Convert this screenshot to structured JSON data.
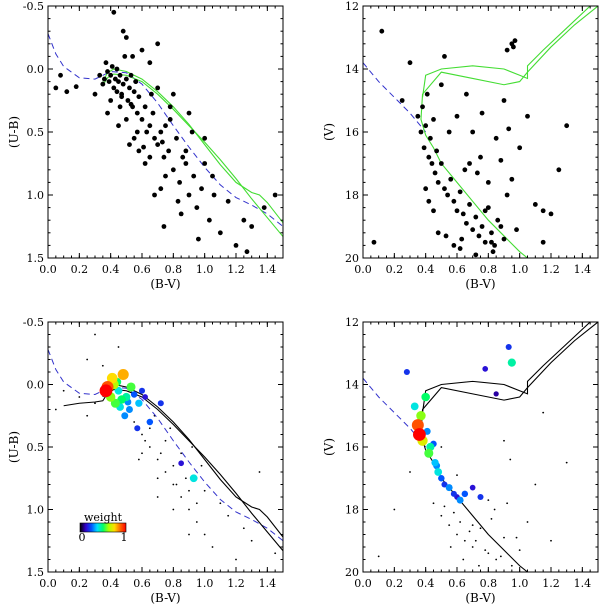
{
  "chart_data": [
    {
      "type": "scatter",
      "panel": "top-left",
      "xlabel": "(B-V)",
      "ylabel": "(U-B)",
      "xlim": [
        0.0,
        1.5
      ],
      "ylim": [
        1.5,
        -0.5
      ],
      "xticks": [
        "0.0",
        "0.2",
        "0.4",
        "0.6",
        "0.8",
        "1.0",
        "1.2",
        "1.4"
      ],
      "yticks": [
        "-0.5",
        "0.0",
        "0.5",
        "1.0",
        "1.5"
      ],
      "point_color": "#000000",
      "isochrone_colors": [
        "#44dd33",
        "#44dd33"
      ],
      "reference_line": {
        "style": "dashed",
        "color": "#3333cc",
        "x": [
          0.0,
          0.05,
          0.1,
          0.2,
          0.3,
          0.4,
          0.5,
          0.6,
          0.7,
          0.8,
          0.9,
          1.0,
          1.1,
          1.2,
          1.3,
          1.4,
          1.5
        ],
        "y": [
          -0.28,
          -0.12,
          -0.02,
          0.07,
          0.08,
          0.02,
          0.03,
          0.12,
          0.27,
          0.45,
          0.62,
          0.78,
          0.92,
          1.02,
          1.08,
          1.15,
          1.25
        ]
      },
      "isochrones": [
        {
          "x": [
            0.35,
            0.38,
            0.42,
            0.5,
            0.6,
            0.7,
            0.8,
            0.9,
            1.0,
            1.1,
            1.2,
            1.3,
            1.4,
            1.5
          ],
          "y": [
            0.13,
            0.07,
            0.04,
            0.05,
            0.1,
            0.2,
            0.32,
            0.45,
            0.58,
            0.72,
            0.87,
            1.03,
            1.18,
            1.33
          ]
        },
        {
          "x": [
            0.35,
            0.38,
            0.42,
            0.5,
            0.6,
            0.7,
            0.8,
            0.9,
            1.0,
            1.1,
            1.2,
            1.3,
            1.35,
            1.4,
            1.5
          ],
          "y": [
            0.1,
            0.03,
            0.0,
            0.02,
            0.08,
            0.18,
            0.3,
            0.44,
            0.6,
            0.76,
            0.9,
            0.98,
            1.0,
            1.06,
            1.22
          ]
        }
      ],
      "scatter_x": [
        0.05,
        0.08,
        0.12,
        0.18,
        0.3,
        0.33,
        0.35,
        0.36,
        0.37,
        0.38,
        0.39,
        0.4,
        0.41,
        0.42,
        0.43,
        0.44,
        0.45,
        0.46,
        0.47,
        0.48,
        0.49,
        0.5,
        0.51,
        0.52,
        0.53,
        0.54,
        0.55,
        0.56,
        0.57,
        0.58,
        0.6,
        0.62,
        0.63,
        0.65,
        0.67,
        0.68,
        0.7,
        0.72,
        0.74,
        0.75,
        0.77,
        0.8,
        0.82,
        0.84,
        0.86,
        0.88,
        0.9,
        0.93,
        0.95,
        0.98,
        1.0,
        1.03,
        1.06,
        1.1,
        1.15,
        1.2,
        1.25,
        1.3,
        0.6,
        0.7,
        0.8,
        0.9,
        0.5,
        0.55,
        0.65,
        0.75,
        0.85,
        0.45,
        0.48,
        0.52,
        0.58,
        0.66,
        0.72,
        0.78,
        0.83,
        0.92,
        1.05,
        0.62,
        0.68,
        0.74,
        0.88,
        0.96,
        0.42,
        0.4,
        0.38,
        0.46,
        0.5,
        0.54,
        0.56,
        1.27,
        1.38,
        1.45,
        0.65,
        0.7,
        0.78,
        1.0,
        0.57,
        0.61,
        0.73,
        0.44,
        0.47,
        0.53
      ],
      "scatter_y": [
        0.15,
        0.05,
        0.18,
        0.14,
        0.2,
        0.05,
        0.12,
        0.08,
        -0.05,
        0.02,
        0.1,
        0.05,
        -0.02,
        0.15,
        0.08,
        0.0,
        0.1,
        0.05,
        0.2,
        0.12,
        -0.1,
        0.08,
        0.25,
        0.15,
        0.05,
        0.3,
        0.18,
        0.1,
        0.35,
        0.22,
        0.4,
        0.3,
        0.5,
        0.45,
        0.35,
        0.55,
        0.6,
        0.5,
        0.7,
        0.45,
        0.65,
        0.8,
        0.55,
        0.9,
        0.7,
        0.75,
        1.0,
        0.85,
        1.1,
        0.95,
        0.75,
        1.2,
        1.0,
        1.3,
        1.05,
        1.4,
        1.2,
        1.25,
        -0.15,
        -0.2,
        0.2,
        0.35,
        -0.25,
        0.55,
        0.7,
        0.85,
        1.15,
        0.45,
        -0.3,
        0.6,
        0.65,
        0.2,
        0.95,
        0.4,
        1.05,
        0.5,
        0.85,
        0.75,
        1.0,
        1.25,
        0.65,
        1.35,
        -0.45,
        0.25,
        0.35,
        0.3,
        0.4,
        -0.1,
        0.1,
        1.45,
        1.1,
        1.0,
        -0.05,
        0.15,
        0.3,
        0.55,
        0.5,
        0.62,
        0.58,
        0.18,
        0.22,
        0.28
      ]
    },
    {
      "type": "scatter",
      "panel": "top-right",
      "xlabel": "(B-V)",
      "ylabel": "(V)",
      "xlim": [
        0.0,
        1.5
      ],
      "ylim": [
        20,
        12
      ],
      "xticks": [
        "0.0",
        "0.2",
        "0.4",
        "0.6",
        "0.8",
        "1.0",
        "1.2",
        "1.4"
      ],
      "yticks": [
        "12",
        "14",
        "16",
        "18",
        "20"
      ],
      "point_color": "#000000",
      "isochrone_colors": [
        "#44dd33",
        "#44dd33"
      ],
      "reference_line": {
        "style": "dashed",
        "color": "#3333cc",
        "x": [
          0.0,
          0.1,
          0.2,
          0.3,
          0.4
        ],
        "y": [
          13.8,
          14.4,
          14.9,
          15.4,
          16.0
        ]
      },
      "isochrones": [
        {
          "x": [
            1.5,
            1.35,
            1.2,
            1.05,
            1.0,
            0.9,
            0.7,
            0.5,
            0.38,
            0.37,
            0.4,
            0.45,
            0.5,
            0.6,
            0.7,
            0.8,
            0.9,
            1.0,
            1.05
          ],
          "y": [
            12.0,
            12.6,
            13.3,
            14.1,
            14.4,
            14.5,
            14.3,
            14.1,
            14.8,
            15.6,
            16.1,
            16.5,
            17.0,
            17.6,
            18.2,
            18.8,
            19.3,
            19.8,
            20.0
          ]
        },
        {
          "x": [
            1.45,
            1.3,
            1.15,
            1.05,
            1.05,
            1.0,
            0.9,
            0.7,
            0.5,
            0.4,
            0.38
          ],
          "y": [
            12.0,
            12.7,
            13.4,
            13.9,
            14.3,
            14.2,
            14.0,
            13.9,
            14.0,
            14.2,
            14.9
          ]
        }
      ],
      "scatter_x": [
        0.07,
        0.12,
        0.25,
        0.3,
        0.35,
        0.37,
        0.38,
        0.39,
        0.4,
        0.41,
        0.42,
        0.43,
        0.44,
        0.45,
        0.46,
        0.47,
        0.48,
        0.5,
        0.52,
        0.54,
        0.56,
        0.58,
        0.6,
        0.62,
        0.64,
        0.66,
        0.68,
        0.7,
        0.72,
        0.74,
        0.76,
        0.78,
        0.8,
        0.82,
        0.84,
        0.86,
        0.88,
        0.9,
        0.92,
        0.95,
        0.98,
        1.0,
        1.05,
        1.1,
        1.15,
        1.2,
        1.25,
        1.3,
        0.55,
        0.65,
        0.75,
        0.85,
        0.5,
        0.6,
        0.7,
        0.8,
        0.9,
        0.45,
        0.4,
        0.42,
        0.48,
        0.53,
        0.58,
        0.63,
        0.68,
        0.73,
        0.78,
        0.83,
        0.88,
        0.93,
        0.95,
        0.96,
        0.97,
        0.92,
        1.15,
        0.62,
        0.72,
        0.82,
        0.52,
        0.66,
        0.76
      ],
      "scatter_y": [
        19.5,
        12.8,
        15.0,
        13.8,
        15.5,
        16.0,
        15.2,
        16.5,
        15.8,
        14.8,
        16.8,
        16.2,
        17.0,
        15.6,
        17.3,
        16.6,
        17.6,
        17.0,
        17.8,
        18.0,
        17.5,
        18.2,
        18.5,
        17.9,
        18.6,
        18.9,
        18.3,
        19.1,
        18.7,
        19.3,
        19.0,
        19.5,
        18.4,
        19.2,
        19.6,
        18.8,
        19.0,
        19.4,
        18.0,
        17.5,
        19.1,
        16.5,
        15.5,
        18.3,
        19.5,
        18.6,
        17.2,
        15.8,
        16.0,
        17.2,
        16.8,
        16.2,
        14.5,
        15.5,
        16.0,
        17.6,
        15.0,
        18.5,
        17.8,
        18.2,
        19.2,
        19.3,
        19.6,
        19.4,
        17.0,
        17.3,
        18.5,
        19.8,
        16.9,
        15.9,
        13.2,
        13.3,
        13.1,
        13.4,
        18.5,
        19.7,
        19.9,
        19.5,
        13.6,
        14.8,
        15.4
      ]
    },
    {
      "type": "scatter",
      "panel": "bottom-left",
      "xlabel": "(B-V)",
      "ylabel": "(U-B)",
      "xlim": [
        0.0,
        1.5
      ],
      "ylim": [
        1.5,
        -0.5
      ],
      "xticks": [
        "0.0",
        "0.2",
        "0.4",
        "0.6",
        "0.8",
        "1.0",
        "1.2",
        "1.4"
      ],
      "yticks": [
        "-0.5",
        "0.0",
        "0.5",
        "1.0",
        "1.5"
      ],
      "point_color": "#000000",
      "isochrone_colors": [
        "#000000",
        "#000000"
      ],
      "legend": {
        "title": "weight",
        "min_label": "0",
        "max_label": "1",
        "placement": "bottom-left"
      },
      "weight_colormap": [
        "#000000",
        "#3300cc",
        "#0055ff",
        "#00ddff",
        "#00ff66",
        "#aaff00",
        "#ffdd00",
        "#ff6600",
        "#ff0000"
      ],
      "reference_line": {
        "style": "dashed",
        "color": "#3333cc",
        "x": [
          0.0,
          0.05,
          0.1,
          0.2,
          0.3,
          0.4,
          0.5,
          0.6,
          0.7,
          0.8,
          0.9,
          1.0,
          1.1,
          1.2,
          1.3,
          1.4,
          1.5
        ],
        "y": [
          -0.28,
          -0.12,
          -0.02,
          0.07,
          0.08,
          0.02,
          0.03,
          0.12,
          0.27,
          0.45,
          0.62,
          0.78,
          0.92,
          1.02,
          1.08,
          1.15,
          1.25
        ]
      },
      "isochrones": [
        {
          "x": [
            0.1,
            0.2,
            0.3,
            0.35,
            0.38,
            0.42,
            0.5,
            0.6,
            0.7,
            0.8,
            0.9,
            1.0,
            1.1,
            1.2,
            1.3,
            1.4,
            1.5
          ],
          "y": [
            0.17,
            0.15,
            0.14,
            0.13,
            0.07,
            0.04,
            0.05,
            0.1,
            0.2,
            0.32,
            0.45,
            0.58,
            0.72,
            0.87,
            1.03,
            1.18,
            1.33
          ]
        },
        {
          "x": [
            0.35,
            0.38,
            0.42,
            0.5,
            0.6,
            0.7,
            0.8,
            0.9,
            1.0,
            1.1,
            1.2,
            1.3,
            1.35,
            1.4,
            1.5
          ],
          "y": [
            0.1,
            0.03,
            0.0,
            0.02,
            0.08,
            0.18,
            0.3,
            0.44,
            0.6,
            0.76,
            0.9,
            0.98,
            1.0,
            1.06,
            1.22
          ]
        }
      ],
      "weighted_x": [
        0.37,
        0.38,
        0.4,
        0.41,
        0.43,
        0.45,
        0.47,
        0.48,
        0.5,
        0.52,
        0.55,
        0.58,
        0.6,
        0.42,
        0.46,
        0.49,
        0.53,
        0.57,
        0.62,
        0.65,
        0.72,
        0.85,
        0.93,
        0.44,
        0.51
      ],
      "weighted_y": [
        0.05,
        0.02,
        0.1,
        -0.05,
        0.15,
        0.05,
        0.12,
        -0.08,
        0.1,
        0.2,
        0.08,
        0.15,
        0.05,
        0.0,
        0.18,
        0.25,
        0.02,
        0.35,
        0.1,
        0.3,
        0.15,
        0.63,
        0.75,
        -0.02,
        0.14
      ],
      "weights": [
        1.0,
        0.9,
        0.6,
        0.75,
        0.55,
        0.4,
        0.5,
        0.8,
        0.45,
        0.3,
        0.25,
        0.35,
        0.2,
        0.65,
        0.4,
        0.3,
        0.55,
        0.2,
        0.15,
        0.25,
        0.2,
        0.15,
        0.4,
        0.5,
        0.3
      ],
      "background_x": [
        0.05,
        0.1,
        0.2,
        0.25,
        0.3,
        0.45,
        0.55,
        0.6,
        0.65,
        0.7,
        0.75,
        0.8,
        0.85,
        0.9,
        0.95,
        1.0,
        1.05,
        1.1,
        1.15,
        1.2,
        1.25,
        1.3,
        1.4,
        0.6,
        0.7,
        0.8,
        0.9,
        0.65,
        0.75,
        0.85,
        0.95,
        0.68,
        0.78,
        0.88,
        0.98,
        0.7,
        0.8,
        0.9,
        1.0,
        0.58,
        0.62,
        0.72,
        0.82,
        0.92,
        0.3,
        0.35,
        0.25,
        1.35,
        1.45
      ],
      "background_y": [
        0.2,
        0.05,
        0.1,
        -0.2,
        0.15,
        -0.3,
        0.3,
        0.4,
        0.5,
        0.6,
        0.7,
        0.8,
        0.9,
        1.0,
        1.1,
        1.2,
        1.3,
        0.95,
        1.05,
        1.4,
        1.15,
        1.25,
        1.5,
        0.55,
        0.75,
        0.65,
        0.85,
        0.35,
        0.45,
        0.55,
        0.95,
        0.25,
        0.35,
        0.75,
        0.65,
        0.9,
        1.0,
        1.2,
        0.85,
        0.6,
        0.45,
        0.55,
        0.8,
        0.5,
        -0.4,
        -0.15,
        0.25,
        0.7,
        1.35
      ]
    },
    {
      "type": "scatter",
      "panel": "bottom-right",
      "xlabel": "(B-V)",
      "ylabel": "(V)",
      "xlim": [
        0.0,
        1.5
      ],
      "ylim": [
        20,
        12
      ],
      "xticks": [
        "0.0",
        "0.2",
        "0.4",
        "0.6",
        "0.8",
        "1.0",
        "1.2",
        "1.4"
      ],
      "yticks": [
        "12",
        "14",
        "16",
        "18",
        "20"
      ],
      "point_color": "#000000",
      "isochrone_colors": [
        "#000000",
        "#000000"
      ],
      "weight_colormap": [
        "#000000",
        "#3300cc",
        "#0055ff",
        "#00ddff",
        "#00ff66",
        "#aaff00",
        "#ffdd00",
        "#ff6600",
        "#ff0000"
      ],
      "reference_line": {
        "style": "dashed",
        "color": "#3333cc",
        "x": [
          0.0,
          0.1,
          0.2,
          0.3,
          0.4
        ],
        "y": [
          13.8,
          14.4,
          14.9,
          15.4,
          16.0
        ]
      },
      "isochrones": [
        {
          "x": [
            1.5,
            1.35,
            1.2,
            1.05,
            1.0,
            0.9,
            0.7,
            0.5,
            0.38,
            0.37,
            0.4,
            0.45,
            0.5,
            0.6,
            0.7,
            0.8,
            0.9,
            1.0,
            1.05
          ],
          "y": [
            12.0,
            12.6,
            13.3,
            14.1,
            14.4,
            14.5,
            14.3,
            14.1,
            14.8,
            15.6,
            16.1,
            16.5,
            17.0,
            17.6,
            18.2,
            18.8,
            19.3,
            19.8,
            20.0
          ]
        },
        {
          "x": [
            1.45,
            1.3,
            1.15,
            1.05,
            1.05,
            1.0,
            0.9,
            0.7,
            0.5,
            0.4,
            0.38
          ],
          "y": [
            12.0,
            12.7,
            13.4,
            13.9,
            14.3,
            14.2,
            14.0,
            13.9,
            14.0,
            14.2,
            14.9
          ]
        }
      ],
      "weighted_x": [
        0.28,
        0.33,
        0.35,
        0.36,
        0.37,
        0.38,
        0.4,
        0.41,
        0.42,
        0.43,
        0.45,
        0.46,
        0.47,
        0.48,
        0.5,
        0.52,
        0.55,
        0.58,
        0.6,
        0.62,
        0.65,
        0.7,
        0.75,
        0.93,
        0.95,
        0.78,
        0.85
      ],
      "weighted_y": [
        13.6,
        14.7,
        15.3,
        15.6,
        15.0,
        15.8,
        14.4,
        15.5,
        16.2,
        16.0,
        15.9,
        16.5,
        16.6,
        16.8,
        17.0,
        17.2,
        17.3,
        17.5,
        17.6,
        17.7,
        17.5,
        17.3,
        17.6,
        12.8,
        13.3,
        13.5,
        14.3
      ],
      "weights": [
        0.2,
        0.4,
        0.9,
        1.0,
        0.6,
        0.7,
        0.5,
        0.3,
        0.55,
        0.45,
        0.25,
        0.35,
        0.3,
        0.4,
        0.25,
        0.2,
        0.3,
        0.2,
        0.15,
        0.3,
        0.25,
        0.15,
        0.2,
        0.2,
        0.45,
        0.15,
        0.1
      ],
      "background_x": [
        0.1,
        0.2,
        0.3,
        0.45,
        0.5,
        0.55,
        0.6,
        0.65,
        0.7,
        0.75,
        0.8,
        0.85,
        0.9,
        0.95,
        1.0,
        1.05,
        1.1,
        1.2,
        1.3,
        0.52,
        0.58,
        0.62,
        0.68,
        0.72,
        0.78,
        0.82,
        0.88,
        0.92,
        0.98,
        0.56,
        0.64,
        0.74,
        0.84,
        0.94,
        0.5,
        0.6,
        0.7,
        0.8,
        0.9,
        1.15
      ],
      "background_y": [
        19.5,
        18.0,
        16.8,
        17.8,
        18.2,
        18.5,
        18.8,
        19.0,
        19.2,
        18.6,
        19.4,
        19.6,
        18.9,
        19.8,
        19.3,
        18.4,
        17.2,
        19.0,
        16.5,
        17.9,
        18.1,
        18.4,
        18.7,
        19.0,
        19.3,
        18.3,
        19.5,
        17.8,
        18.9,
        19.2,
        19.6,
        19.8,
        18.0,
        16.4,
        16.0,
        16.9,
        18.5,
        17.7,
        15.8,
        14.9
      ]
    }
  ]
}
